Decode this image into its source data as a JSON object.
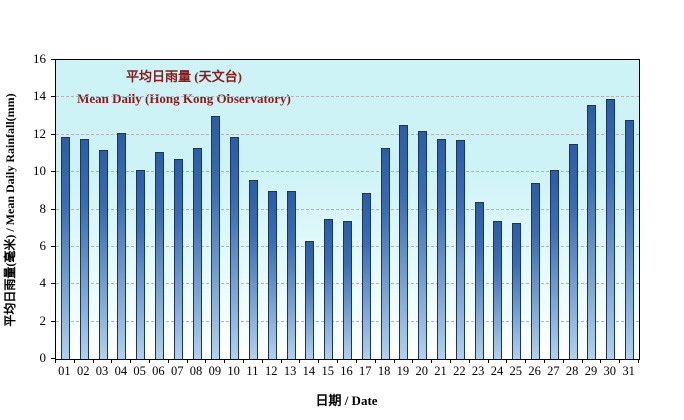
{
  "chart_data": {
    "type": "bar",
    "title_line1": "平均日雨量 (天文台)",
    "title_line2": "Mean Daily (Hong Kong Observatory)",
    "xlabel": "日期 / Date",
    "ylabel": "平均日雨量(毫米) / Mean Daily Rainfall(mm)",
    "categories": [
      "01",
      "02",
      "03",
      "04",
      "05",
      "06",
      "07",
      "08",
      "09",
      "10",
      "11",
      "12",
      "13",
      "14",
      "15",
      "16",
      "17",
      "18",
      "19",
      "20",
      "21",
      "22",
      "23",
      "24",
      "25",
      "26",
      "27",
      "28",
      "29",
      "30",
      "31"
    ],
    "values": [
      11.9,
      11.8,
      11.2,
      12.1,
      10.1,
      11.1,
      10.7,
      11.3,
      13.0,
      11.9,
      9.6,
      9.0,
      9.0,
      6.3,
      7.5,
      7.4,
      8.9,
      11.3,
      12.5,
      12.2,
      11.8,
      11.7,
      8.4,
      7.4,
      7.3,
      9.4,
      10.1,
      11.5,
      13.6,
      13.9,
      12.8
    ],
    "ylim": [
      0,
      16
    ],
    "yticks": [
      0,
      2,
      4,
      6,
      8,
      10,
      12,
      14,
      16
    ],
    "grid": true,
    "legend_position": "none",
    "colors": {
      "plot_bg_top": "#cdf3f6",
      "plot_bg_bottom": "#ffffff",
      "bar_top": "#2d5ca8",
      "bar_bottom": "#b2d0ee",
      "bar_border": "#17375e",
      "title_color": "#8b1a1a",
      "gridline": "#b3b3b3",
      "axis": "#000000"
    }
  }
}
